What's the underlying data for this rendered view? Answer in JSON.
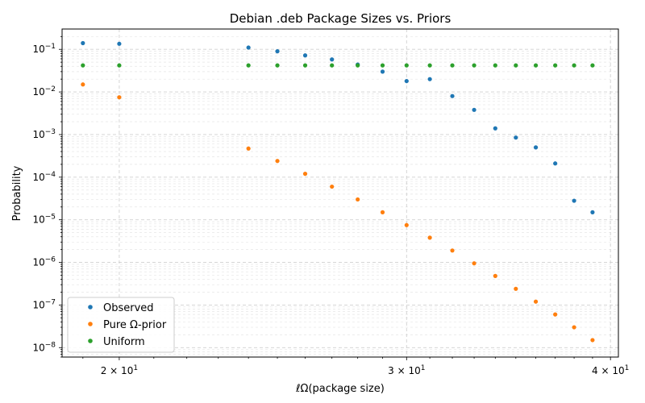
{
  "chart_data": {
    "type": "scatter",
    "title": "Debian .deb Package Sizes vs. Priors",
    "xlabel": "ℓΩ(package size)",
    "ylabel": "Probability",
    "xscale": "log",
    "yscale": "log",
    "xlim": [
      18.45,
      40.45
    ],
    "ylim": [
      6e-09,
      0.3
    ],
    "grid": true,
    "legend_position": "lower-left",
    "x_tick_labels": [
      {
        "value": 20,
        "label": "2 × 10",
        "exp": "1"
      },
      {
        "value": 30,
        "label": "3 × 10",
        "exp": "1"
      },
      {
        "value": 40,
        "label": "4 × 10",
        "exp": "1"
      }
    ],
    "y_tick_labels": [
      {
        "value": 0.1,
        "base": "10",
        "exp": "−1"
      },
      {
        "value": 0.01,
        "base": "10",
        "exp": "−2"
      },
      {
        "value": 0.001,
        "base": "10",
        "exp": "−3"
      },
      {
        "value": 0.0001,
        "base": "10",
        "exp": "−4"
      },
      {
        "value": 1e-05,
        "base": "10",
        "exp": "−5"
      },
      {
        "value": 1e-06,
        "base": "10",
        "exp": "−6"
      },
      {
        "value": 1e-07,
        "base": "10",
        "exp": "−7"
      },
      {
        "value": 1e-08,
        "base": "10",
        "exp": "−8"
      }
    ],
    "x": [
      19,
      20,
      24,
      25,
      26,
      27,
      28,
      29,
      30,
      31,
      32,
      33,
      34,
      35,
      36,
      37,
      38,
      39
    ],
    "series": [
      {
        "name": "Observed",
        "color": "#1f77b4",
        "values": [
          0.14,
          0.135,
          0.11,
          0.09,
          0.072,
          0.058,
          0.044,
          0.03,
          0.018,
          0.02,
          0.008,
          0.0038,
          0.0014,
          0.00085,
          0.0005,
          0.00021,
          2.8e-05,
          1.5e-05
        ]
      },
      {
        "name": "Pure Ω-prior",
        "color": "#ff7f0e",
        "values": [
          0.015,
          0.0075,
          0.00047,
          0.00024,
          0.00012,
          6e-05,
          3e-05,
          1.5e-05,
          7.5e-06,
          3.8e-06,
          1.9e-06,
          9.5e-07,
          4.8e-07,
          2.4e-07,
          1.2e-07,
          6e-08,
          3e-08,
          1.5e-08
        ]
      },
      {
        "name": "Uniform",
        "color": "#2ca02c",
        "values": [
          0.042,
          0.042,
          0.042,
          0.042,
          0.042,
          0.042,
          0.042,
          0.042,
          0.042,
          0.042,
          0.042,
          0.042,
          0.042,
          0.042,
          0.042,
          0.042,
          0.042,
          0.042
        ]
      }
    ]
  }
}
